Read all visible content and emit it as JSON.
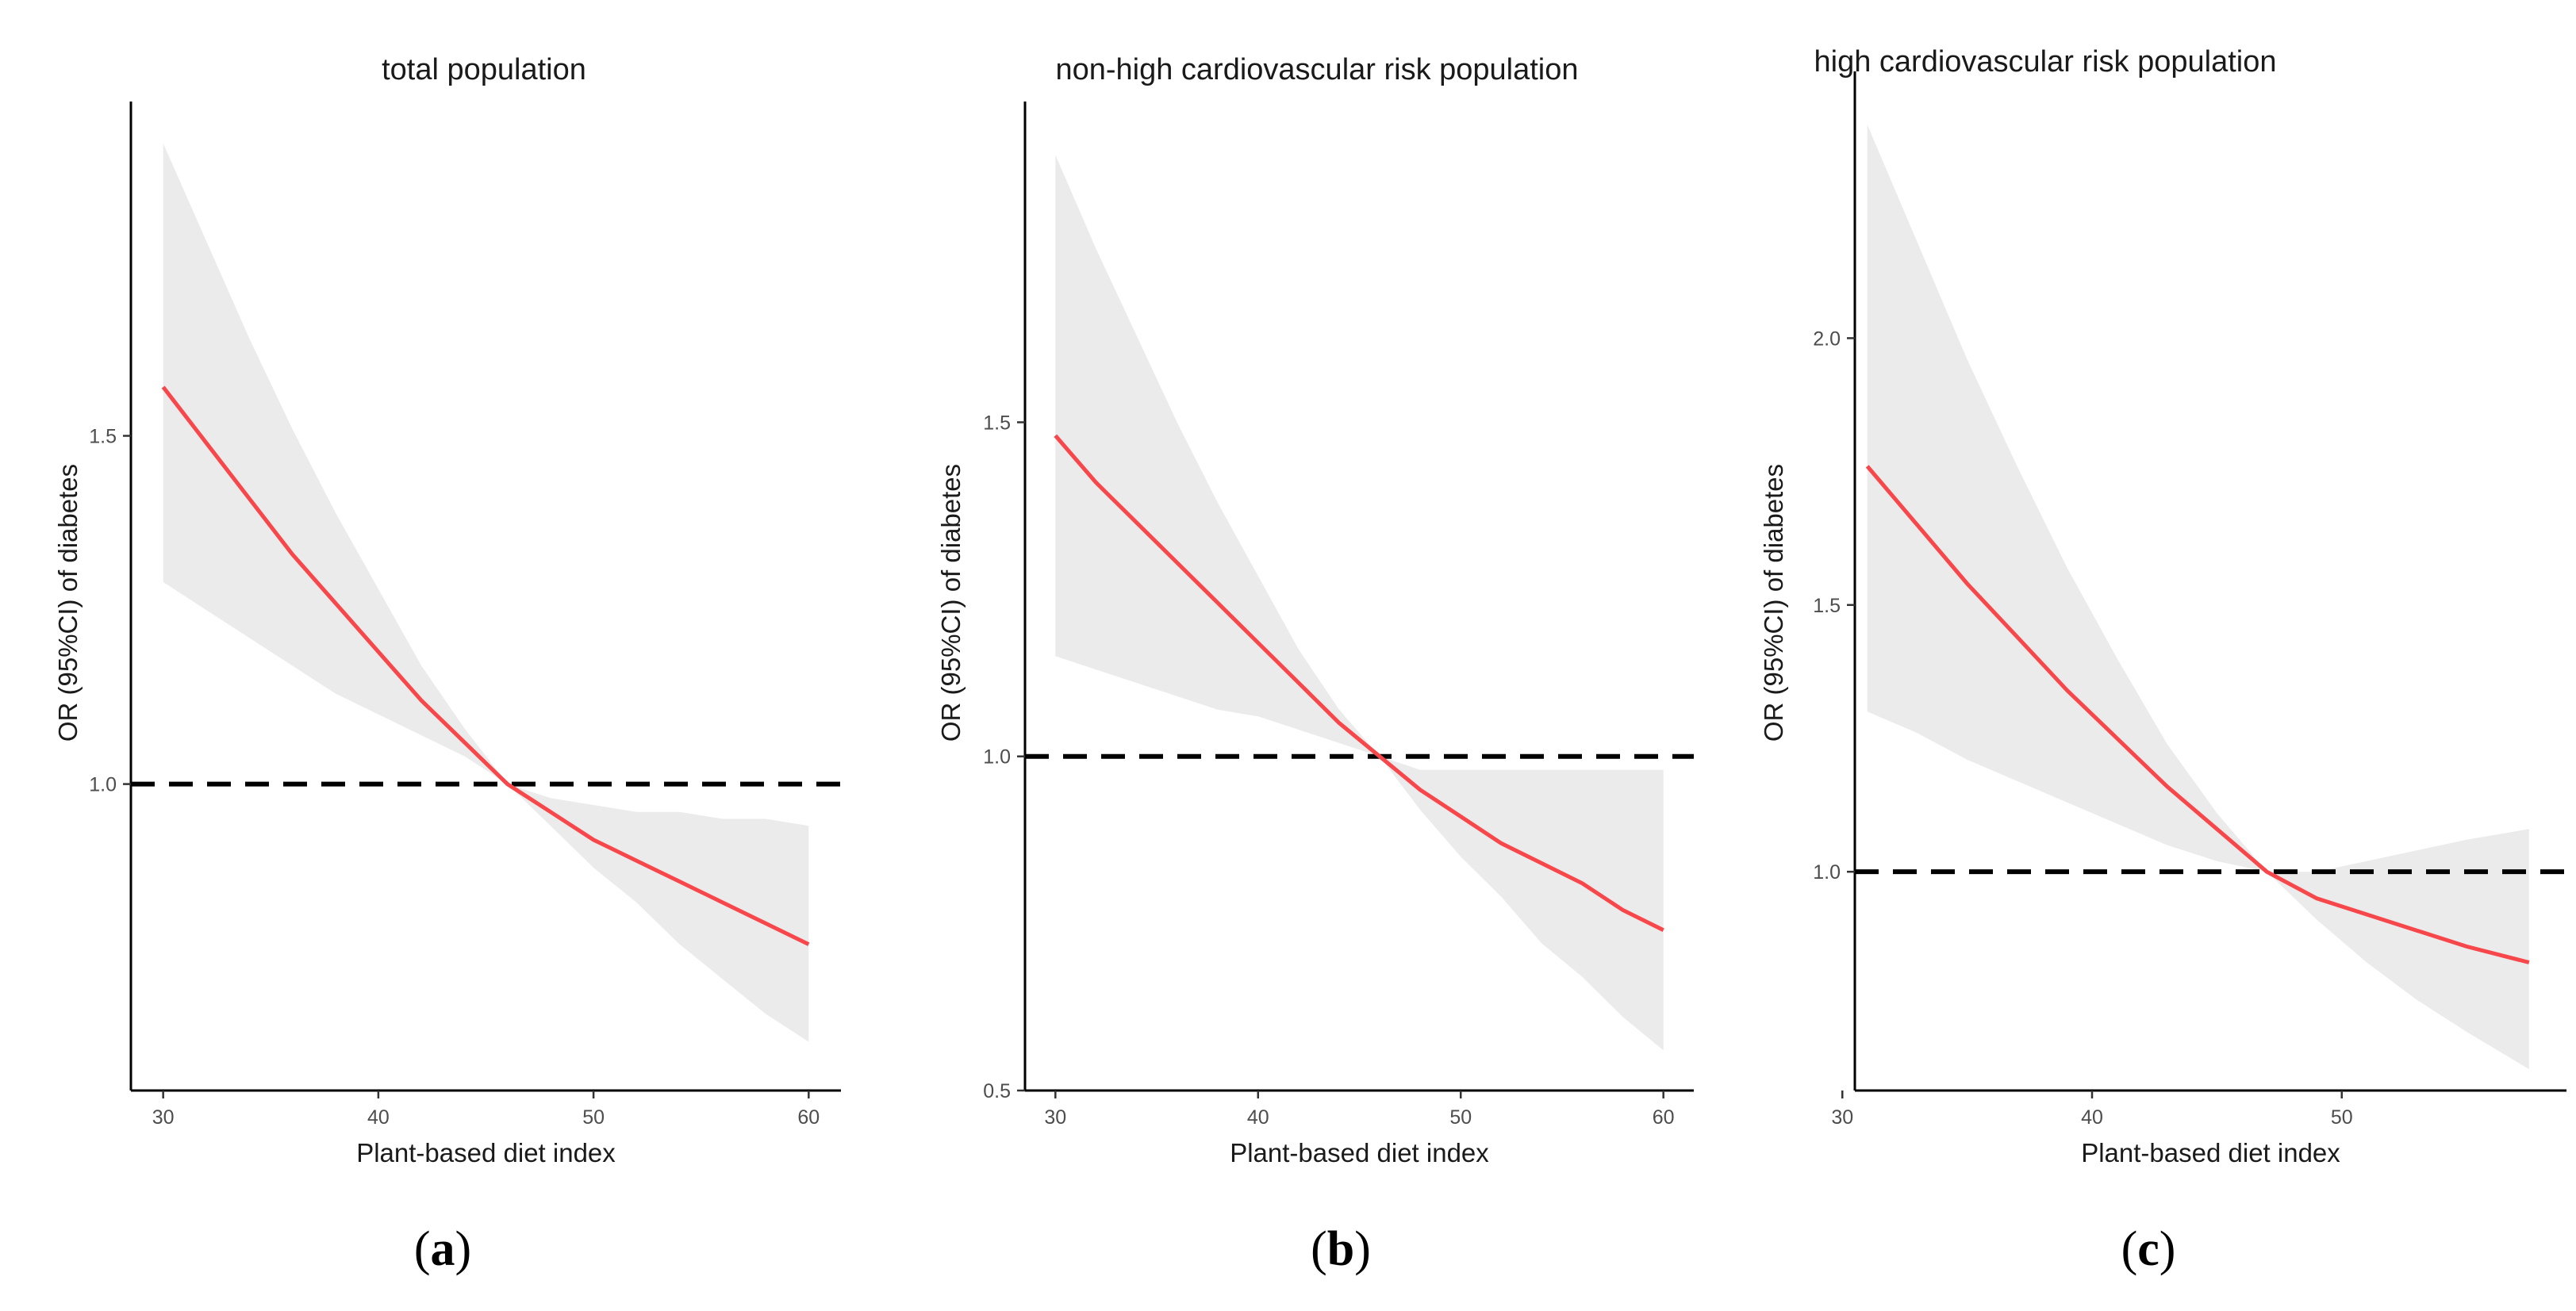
{
  "figure": {
    "captions": [
      "(a)",
      "(b)",
      "(c)"
    ]
  },
  "chart_data": [
    {
      "type": "line",
      "panel": "a",
      "title": "total population",
      "xlabel": "Plant-based diet index",
      "ylabel": "OR (95%CI) of diabetes",
      "xlim": [
        28.5,
        61.5
      ],
      "ylim": [
        0.56,
        1.98
      ],
      "xticks": [
        30,
        40,
        50,
        60
      ],
      "yticks": [
        1.0,
        1.5
      ],
      "ytick_labels": [
        "1.0",
        "1.5"
      ],
      "reference_line": 1.0,
      "series": [
        {
          "name": "OR",
          "x": [
            30,
            32,
            34,
            36,
            38,
            40,
            42,
            44,
            46,
            48,
            50,
            52,
            54,
            56,
            58,
            60
          ],
          "y": [
            1.57,
            1.49,
            1.41,
            1.33,
            1.26,
            1.19,
            1.12,
            1.06,
            1.0,
            0.96,
            0.92,
            0.89,
            0.86,
            0.83,
            0.8,
            0.77
          ]
        },
        {
          "name": "95% CI upper",
          "x": [
            30,
            32,
            34,
            36,
            38,
            40,
            42,
            44,
            46,
            48,
            50,
            52,
            54,
            56,
            58,
            60
          ],
          "y": [
            1.92,
            1.78,
            1.64,
            1.51,
            1.39,
            1.28,
            1.17,
            1.08,
            1.0,
            0.98,
            0.97,
            0.96,
            0.96,
            0.95,
            0.95,
            0.94
          ]
        },
        {
          "name": "95% CI lower",
          "x": [
            30,
            32,
            34,
            36,
            38,
            40,
            42,
            44,
            46,
            48,
            50,
            52,
            54,
            56,
            58,
            60
          ],
          "y": [
            1.29,
            1.25,
            1.21,
            1.17,
            1.13,
            1.1,
            1.07,
            1.04,
            1.0,
            0.94,
            0.88,
            0.83,
            0.77,
            0.72,
            0.67,
            0.63
          ]
        }
      ]
    },
    {
      "type": "line",
      "panel": "b",
      "title": "non-high cardiovascular risk population",
      "xlabel": "Plant-based diet index",
      "ylabel": "OR (95%CI) of diabetes",
      "xlim": [
        28.5,
        61.5
      ],
      "ylim": [
        0.5,
        1.98
      ],
      "xticks": [
        30,
        40,
        50,
        60
      ],
      "yticks": [
        0.5,
        1.0,
        1.5
      ],
      "ytick_labels": [
        "0.5",
        "1.0",
        "1.5"
      ],
      "reference_line": 1.0,
      "series": [
        {
          "name": "OR",
          "x": [
            30,
            32,
            34,
            36,
            38,
            40,
            42,
            44,
            46,
            48,
            50,
            52,
            54,
            56,
            58,
            60
          ],
          "y": [
            1.48,
            1.41,
            1.35,
            1.29,
            1.23,
            1.17,
            1.11,
            1.05,
            1.0,
            0.95,
            0.91,
            0.87,
            0.84,
            0.81,
            0.77,
            0.74
          ]
        },
        {
          "name": "95% CI upper",
          "x": [
            30,
            32,
            34,
            36,
            38,
            40,
            42,
            44,
            46,
            48,
            50,
            52,
            54,
            56,
            58,
            60
          ],
          "y": [
            1.9,
            1.76,
            1.63,
            1.5,
            1.38,
            1.27,
            1.16,
            1.07,
            1.0,
            0.98,
            0.98,
            0.98,
            0.98,
            0.98,
            0.98,
            0.98
          ]
        },
        {
          "name": "95% CI lower",
          "x": [
            30,
            32,
            34,
            36,
            38,
            40,
            42,
            44,
            46,
            48,
            50,
            52,
            54,
            56,
            58,
            60
          ],
          "y": [
            1.15,
            1.13,
            1.11,
            1.09,
            1.07,
            1.06,
            1.04,
            1.02,
            1.0,
            0.92,
            0.85,
            0.79,
            0.72,
            0.67,
            0.61,
            0.56
          ]
        }
      ]
    },
    {
      "type": "line",
      "panel": "c",
      "title": "high cardiovascular risk population",
      "xlabel": "Plant-based diet index",
      "ylabel": "OR (95%CI) of diabetes",
      "xlim": [
        30.5,
        59.0
      ],
      "ylim": [
        0.59,
        2.5
      ],
      "xticks": [
        30,
        40,
        50
      ],
      "yticks": [
        1.0,
        1.5,
        2.0
      ],
      "ytick_labels": [
        "1.0",
        "1.5",
        "2.0"
      ],
      "reference_line": 1.0,
      "series": [
        {
          "name": "OR",
          "x": [
            31,
            33,
            35,
            37,
            39,
            41,
            43,
            45,
            47,
            49,
            51,
            53,
            55,
            57.5
          ],
          "y": [
            1.76,
            1.65,
            1.54,
            1.44,
            1.34,
            1.25,
            1.16,
            1.08,
            1.0,
            0.95,
            0.92,
            0.89,
            0.86,
            0.83
          ]
        },
        {
          "name": "95% CI upper",
          "x": [
            31,
            33,
            35,
            37,
            39,
            41,
            43,
            45,
            47,
            49,
            51,
            53,
            55,
            57.5
          ],
          "y": [
            2.4,
            2.18,
            1.96,
            1.76,
            1.57,
            1.4,
            1.24,
            1.11,
            1.0,
            1.0,
            1.02,
            1.04,
            1.06,
            1.08
          ]
        },
        {
          "name": "95% CI lower",
          "x": [
            31,
            33,
            35,
            37,
            39,
            41,
            43,
            45,
            47,
            49,
            51,
            53,
            55,
            57.5
          ],
          "y": [
            1.3,
            1.26,
            1.21,
            1.17,
            1.13,
            1.09,
            1.05,
            1.02,
            1.0,
            0.91,
            0.83,
            0.76,
            0.7,
            0.63
          ]
        }
      ]
    }
  ]
}
